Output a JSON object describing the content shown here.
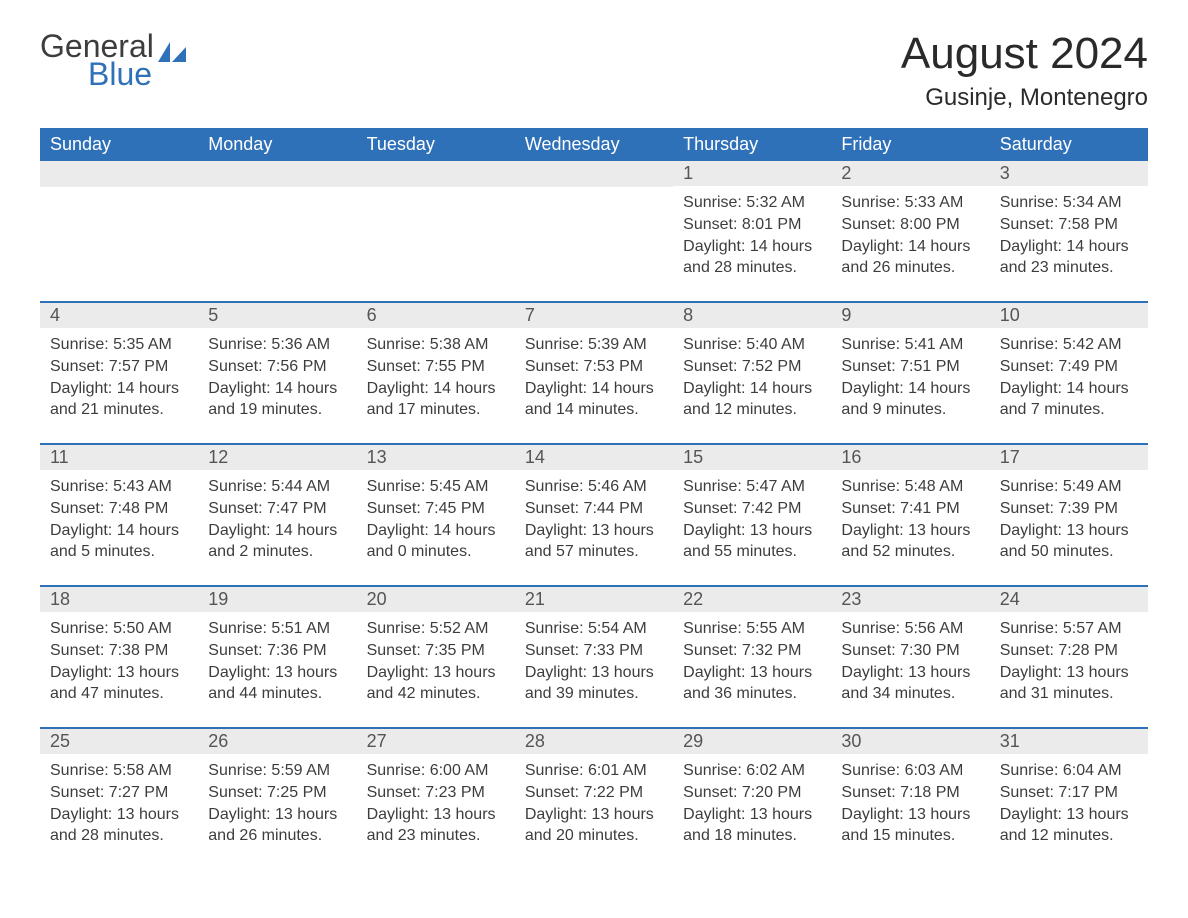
{
  "logo": {
    "word1": "General",
    "word2": "Blue",
    "text_color": "#3d3d3d",
    "accent_color": "#2f71b8"
  },
  "title": "August 2024",
  "location": "Gusinje, Montenegro",
  "colors": {
    "header_bg": "#2f71b8",
    "header_text": "#ffffff",
    "daynum_bg": "#ebebeb",
    "daynum_text": "#555555",
    "body_text": "#3d3d3d",
    "rule": "#2f71b8",
    "page_bg": "#ffffff"
  },
  "typography": {
    "title_size": 44,
    "location_size": 24,
    "weekday_size": 18,
    "daynum_size": 18,
    "body_size": 16
  },
  "weekdays": [
    "Sunday",
    "Monday",
    "Tuesday",
    "Wednesday",
    "Thursday",
    "Friday",
    "Saturday"
  ],
  "weeks": [
    [
      null,
      null,
      null,
      null,
      {
        "n": "1",
        "sunrise": "5:32 AM",
        "sunset": "8:01 PM",
        "daylight": "14 hours and 28 minutes."
      },
      {
        "n": "2",
        "sunrise": "5:33 AM",
        "sunset": "8:00 PM",
        "daylight": "14 hours and 26 minutes."
      },
      {
        "n": "3",
        "sunrise": "5:34 AM",
        "sunset": "7:58 PM",
        "daylight": "14 hours and 23 minutes."
      }
    ],
    [
      {
        "n": "4",
        "sunrise": "5:35 AM",
        "sunset": "7:57 PM",
        "daylight": "14 hours and 21 minutes."
      },
      {
        "n": "5",
        "sunrise": "5:36 AM",
        "sunset": "7:56 PM",
        "daylight": "14 hours and 19 minutes."
      },
      {
        "n": "6",
        "sunrise": "5:38 AM",
        "sunset": "7:55 PM",
        "daylight": "14 hours and 17 minutes."
      },
      {
        "n": "7",
        "sunrise": "5:39 AM",
        "sunset": "7:53 PM",
        "daylight": "14 hours and 14 minutes."
      },
      {
        "n": "8",
        "sunrise": "5:40 AM",
        "sunset": "7:52 PM",
        "daylight": "14 hours and 12 minutes."
      },
      {
        "n": "9",
        "sunrise": "5:41 AM",
        "sunset": "7:51 PM",
        "daylight": "14 hours and 9 minutes."
      },
      {
        "n": "10",
        "sunrise": "5:42 AM",
        "sunset": "7:49 PM",
        "daylight": "14 hours and 7 minutes."
      }
    ],
    [
      {
        "n": "11",
        "sunrise": "5:43 AM",
        "sunset": "7:48 PM",
        "daylight": "14 hours and 5 minutes."
      },
      {
        "n": "12",
        "sunrise": "5:44 AM",
        "sunset": "7:47 PM",
        "daylight": "14 hours and 2 minutes."
      },
      {
        "n": "13",
        "sunrise": "5:45 AM",
        "sunset": "7:45 PM",
        "daylight": "14 hours and 0 minutes."
      },
      {
        "n": "14",
        "sunrise": "5:46 AM",
        "sunset": "7:44 PM",
        "daylight": "13 hours and 57 minutes."
      },
      {
        "n": "15",
        "sunrise": "5:47 AM",
        "sunset": "7:42 PM",
        "daylight": "13 hours and 55 minutes."
      },
      {
        "n": "16",
        "sunrise": "5:48 AM",
        "sunset": "7:41 PM",
        "daylight": "13 hours and 52 minutes."
      },
      {
        "n": "17",
        "sunrise": "5:49 AM",
        "sunset": "7:39 PM",
        "daylight": "13 hours and 50 minutes."
      }
    ],
    [
      {
        "n": "18",
        "sunrise": "5:50 AM",
        "sunset": "7:38 PM",
        "daylight": "13 hours and 47 minutes."
      },
      {
        "n": "19",
        "sunrise": "5:51 AM",
        "sunset": "7:36 PM",
        "daylight": "13 hours and 44 minutes."
      },
      {
        "n": "20",
        "sunrise": "5:52 AM",
        "sunset": "7:35 PM",
        "daylight": "13 hours and 42 minutes."
      },
      {
        "n": "21",
        "sunrise": "5:54 AM",
        "sunset": "7:33 PM",
        "daylight": "13 hours and 39 minutes."
      },
      {
        "n": "22",
        "sunrise": "5:55 AM",
        "sunset": "7:32 PM",
        "daylight": "13 hours and 36 minutes."
      },
      {
        "n": "23",
        "sunrise": "5:56 AM",
        "sunset": "7:30 PM",
        "daylight": "13 hours and 34 minutes."
      },
      {
        "n": "24",
        "sunrise": "5:57 AM",
        "sunset": "7:28 PM",
        "daylight": "13 hours and 31 minutes."
      }
    ],
    [
      {
        "n": "25",
        "sunrise": "5:58 AM",
        "sunset": "7:27 PM",
        "daylight": "13 hours and 28 minutes."
      },
      {
        "n": "26",
        "sunrise": "5:59 AM",
        "sunset": "7:25 PM",
        "daylight": "13 hours and 26 minutes."
      },
      {
        "n": "27",
        "sunrise": "6:00 AM",
        "sunset": "7:23 PM",
        "daylight": "13 hours and 23 minutes."
      },
      {
        "n": "28",
        "sunrise": "6:01 AM",
        "sunset": "7:22 PM",
        "daylight": "13 hours and 20 minutes."
      },
      {
        "n": "29",
        "sunrise": "6:02 AM",
        "sunset": "7:20 PM",
        "daylight": "13 hours and 18 minutes."
      },
      {
        "n": "30",
        "sunrise": "6:03 AM",
        "sunset": "7:18 PM",
        "daylight": "13 hours and 15 minutes."
      },
      {
        "n": "31",
        "sunrise": "6:04 AM",
        "sunset": "7:17 PM",
        "daylight": "13 hours and 12 minutes."
      }
    ]
  ],
  "labels": {
    "sunrise": "Sunrise:",
    "sunset": "Sunset:",
    "daylight": "Daylight:"
  }
}
